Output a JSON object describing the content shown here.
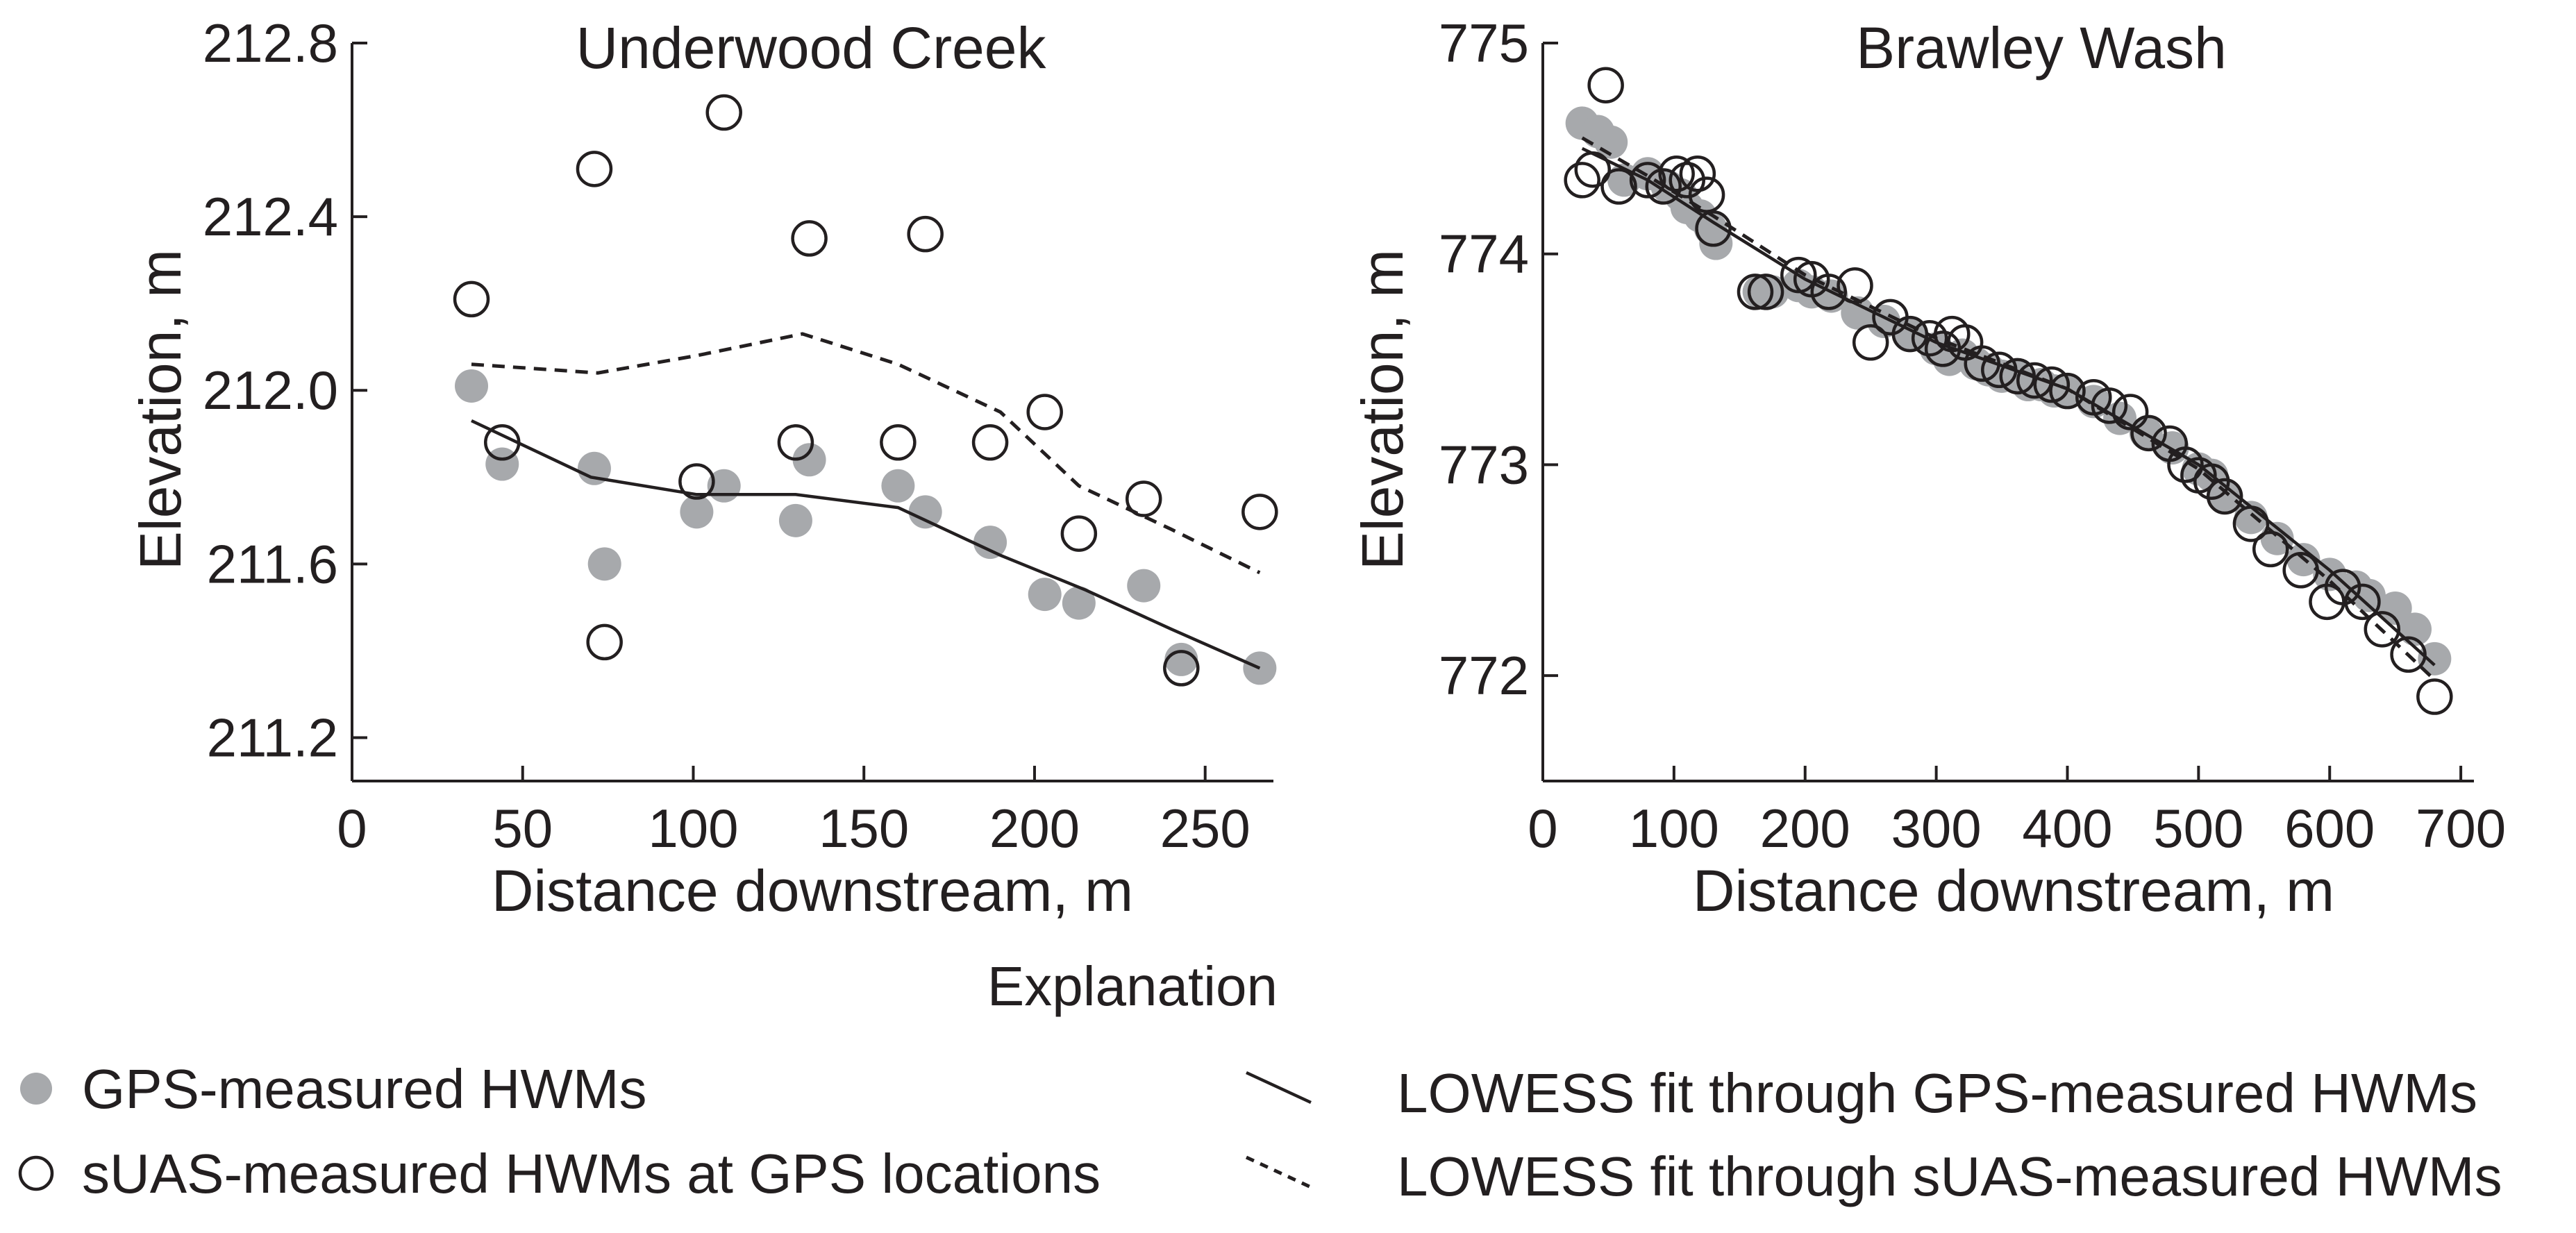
{
  "chart_data": [
    {
      "type": "scatter",
      "title": "Underwood Creek",
      "xlabel": "Distance downstream, m",
      "ylabel": "Elevation, m",
      "xlim": [
        0,
        270
      ],
      "ylim": [
        211.1,
        212.8
      ],
      "xticks": [
        0,
        50,
        100,
        150,
        200,
        250
      ],
      "xtick_labels": [
        "0",
        "50",
        "100",
        "150",
        "200",
        "250"
      ],
      "yticks": [
        211.2,
        211.6,
        212.0,
        212.4,
        212.8
      ],
      "ytick_labels": [
        "211.2",
        "211.6",
        "212.0",
        "212.4",
        "212.8"
      ],
      "series": [
        {
          "name": "GPS-measured HWMs",
          "marker": "filled-circle",
          "points": [
            [
              35,
              212.01
            ],
            [
              44,
              211.83
            ],
            [
              71,
              211.82
            ],
            [
              74,
              211.6
            ],
            [
              101,
              211.72
            ],
            [
              109,
              211.78
            ],
            [
              130,
              211.7
            ],
            [
              134,
              211.84
            ],
            [
              160,
              211.78
            ],
            [
              168,
              211.72
            ],
            [
              187,
              211.65
            ],
            [
              203,
              211.53
            ],
            [
              213,
              211.51
            ],
            [
              232,
              211.55
            ],
            [
              243,
              211.38
            ],
            [
              266,
              211.36
            ]
          ]
        },
        {
          "name": "sUAS-measured HWMs at GPS locations",
          "marker": "open-circle",
          "points": [
            [
              35,
              212.21
            ],
            [
              44,
              211.88
            ],
            [
              71,
              212.51
            ],
            [
              74,
              211.42
            ],
            [
              101,
              211.79
            ],
            [
              109,
              212.64
            ],
            [
              130,
              211.88
            ],
            [
              134,
              212.35
            ],
            [
              160,
              211.88
            ],
            [
              168,
              212.36
            ],
            [
              187,
              211.88
            ],
            [
              203,
              211.95
            ],
            [
              213,
              211.67
            ],
            [
              232,
              211.75
            ],
            [
              243,
              211.36
            ],
            [
              266,
              211.72
            ]
          ]
        },
        {
          "name": "LOWESS fit through GPS-measured HWMs",
          "style": "solid",
          "points": [
            [
              35,
              211.93
            ],
            [
              70,
              211.8
            ],
            [
              101,
              211.76
            ],
            [
              130,
              211.76
            ],
            [
              160,
              211.73
            ],
            [
              190,
              211.62
            ],
            [
              215,
              211.54
            ],
            [
              240,
              211.45
            ],
            [
              266,
              211.36
            ]
          ]
        },
        {
          "name": "LOWESS fit through sUAS-measured HWMs",
          "style": "dashed",
          "points": [
            [
              35,
              212.06
            ],
            [
              72,
              212.04
            ],
            [
              101,
              212.08
            ],
            [
              132,
              212.13
            ],
            [
              160,
              212.06
            ],
            [
              190,
              211.95
            ],
            [
              213,
              211.78
            ],
            [
              240,
              211.68
            ],
            [
              266,
              211.58
            ]
          ]
        }
      ]
    },
    {
      "type": "scatter",
      "title": "Brawley Wash",
      "xlabel": "Distance downstream, m",
      "ylabel": "Elevation, m",
      "xlim": [
        0,
        710
      ],
      "ylim": [
        771.5,
        775.0
      ],
      "xticks": [
        0,
        100,
        200,
        300,
        400,
        500,
        600,
        700
      ],
      "xtick_labels": [
        "0",
        "100",
        "200",
        "300",
        "400",
        "500",
        "600",
        "700"
      ],
      "yticks": [
        772,
        773,
        774,
        775
      ],
      "ytick_labels": [
        "772",
        "773",
        "774",
        "775"
      ],
      "series": [
        {
          "name": "GPS-measured HWMs",
          "marker": "filled-circle",
          "points": [
            [
              30,
              774.62
            ],
            [
              42,
              774.58
            ],
            [
              52,
              774.53
            ],
            [
              62,
              774.35
            ],
            [
              80,
              774.38
            ],
            [
              95,
              774.32
            ],
            [
              105,
              774.28
            ],
            [
              110,
              774.22
            ],
            [
              120,
              774.18
            ],
            [
              128,
              774.12
            ],
            [
              132,
              774.05
            ],
            [
              165,
              773.82
            ],
            [
              175,
              773.82
            ],
            [
              195,
              773.85
            ],
            [
              205,
              773.82
            ],
            [
              220,
              773.8
            ],
            [
              240,
              773.72
            ],
            [
              260,
              773.68
            ],
            [
              280,
              773.62
            ],
            [
              300,
              773.55
            ],
            [
              310,
              773.5
            ],
            [
              320,
              773.52
            ],
            [
              330,
              773.48
            ],
            [
              340,
              773.45
            ],
            [
              350,
              773.42
            ],
            [
              360,
              773.42
            ],
            [
              370,
              773.38
            ],
            [
              380,
              773.38
            ],
            [
              390,
              773.35
            ],
            [
              400,
              773.35
            ],
            [
              420,
              773.3
            ],
            [
              440,
              773.22
            ],
            [
              460,
              773.15
            ],
            [
              480,
              773.08
            ],
            [
              500,
              772.98
            ],
            [
              510,
              772.95
            ],
            [
              520,
              772.85
            ],
            [
              540,
              772.75
            ],
            [
              560,
              772.65
            ],
            [
              580,
              772.55
            ],
            [
              600,
              772.48
            ],
            [
              620,
              772.42
            ],
            [
              630,
              772.38
            ],
            [
              650,
              772.32
            ],
            [
              665,
              772.22
            ],
            [
              680,
              772.08
            ]
          ]
        },
        {
          "name": "sUAS-measured HWMs at GPS locations",
          "marker": "open-circle",
          "points": [
            [
              30,
              774.35
            ],
            [
              38,
              774.4
            ],
            [
              48,
              774.8
            ],
            [
              58,
              774.32
            ],
            [
              80,
              774.35
            ],
            [
              92,
              774.32
            ],
            [
              102,
              774.38
            ],
            [
              110,
              774.35
            ],
            [
              118,
              774.38
            ],
            [
              125,
              774.28
            ],
            [
              130,
              774.12
            ],
            [
              162,
              773.82
            ],
            [
              170,
              773.82
            ],
            [
              195,
              773.9
            ],
            [
              205,
              773.88
            ],
            [
              218,
              773.82
            ],
            [
              238,
              773.85
            ],
            [
              250,
              773.58
            ],
            [
              265,
              773.7
            ],
            [
              280,
              773.62
            ],
            [
              295,
              773.6
            ],
            [
              305,
              773.55
            ],
            [
              312,
              773.62
            ],
            [
              322,
              773.58
            ],
            [
              335,
              773.48
            ],
            [
              348,
              773.45
            ],
            [
              362,
              773.42
            ],
            [
              375,
              773.4
            ],
            [
              388,
              773.38
            ],
            [
              400,
              773.35
            ],
            [
              420,
              773.32
            ],
            [
              432,
              773.28
            ],
            [
              448,
              773.25
            ],
            [
              462,
              773.15
            ],
            [
              478,
              773.1
            ],
            [
              490,
              773.0
            ],
            [
              500,
              772.95
            ],
            [
              510,
              772.92
            ],
            [
              520,
              772.85
            ],
            [
              540,
              772.72
            ],
            [
              555,
              772.6
            ],
            [
              578,
              772.5
            ],
            [
              598,
              772.35
            ],
            [
              610,
              772.42
            ],
            [
              625,
              772.35
            ],
            [
              640,
              772.22
            ],
            [
              660,
              772.1
            ],
            [
              680,
              771.9
            ]
          ]
        },
        {
          "name": "LOWESS fit through GPS-measured HWMs",
          "style": "solid",
          "points": [
            [
              30,
              774.5
            ],
            [
              80,
              774.35
            ],
            [
              130,
              774.15
            ],
            [
              200,
              773.88
            ],
            [
              300,
              773.58
            ],
            [
              400,
              773.36
            ],
            [
              500,
              773.0
            ],
            [
              600,
              772.5
            ],
            [
              680,
              772.05
            ]
          ]
        },
        {
          "name": "LOWESS fit through sUAS-measured HWMs",
          "style": "dashed",
          "points": [
            [
              30,
              774.55
            ],
            [
              80,
              774.37
            ],
            [
              130,
              774.18
            ],
            [
              200,
              773.9
            ],
            [
              300,
              773.6
            ],
            [
              400,
              773.36
            ],
            [
              500,
              772.98
            ],
            [
              600,
              772.45
            ],
            [
              680,
              771.98
            ]
          ]
        }
      ]
    }
  ],
  "legend": {
    "title": "Explanation",
    "items": [
      {
        "label": "GPS-measured HWMs"
      },
      {
        "label": "sUAS-measured HWMs at GPS locations"
      },
      {
        "label": "LOWESS fit through GPS-measured HWMs"
      },
      {
        "label": "LOWESS fit through sUAS-measured HWMs"
      }
    ]
  },
  "colors": {
    "ink": "#231f20",
    "gps_marker": "#a7a9ac"
  }
}
